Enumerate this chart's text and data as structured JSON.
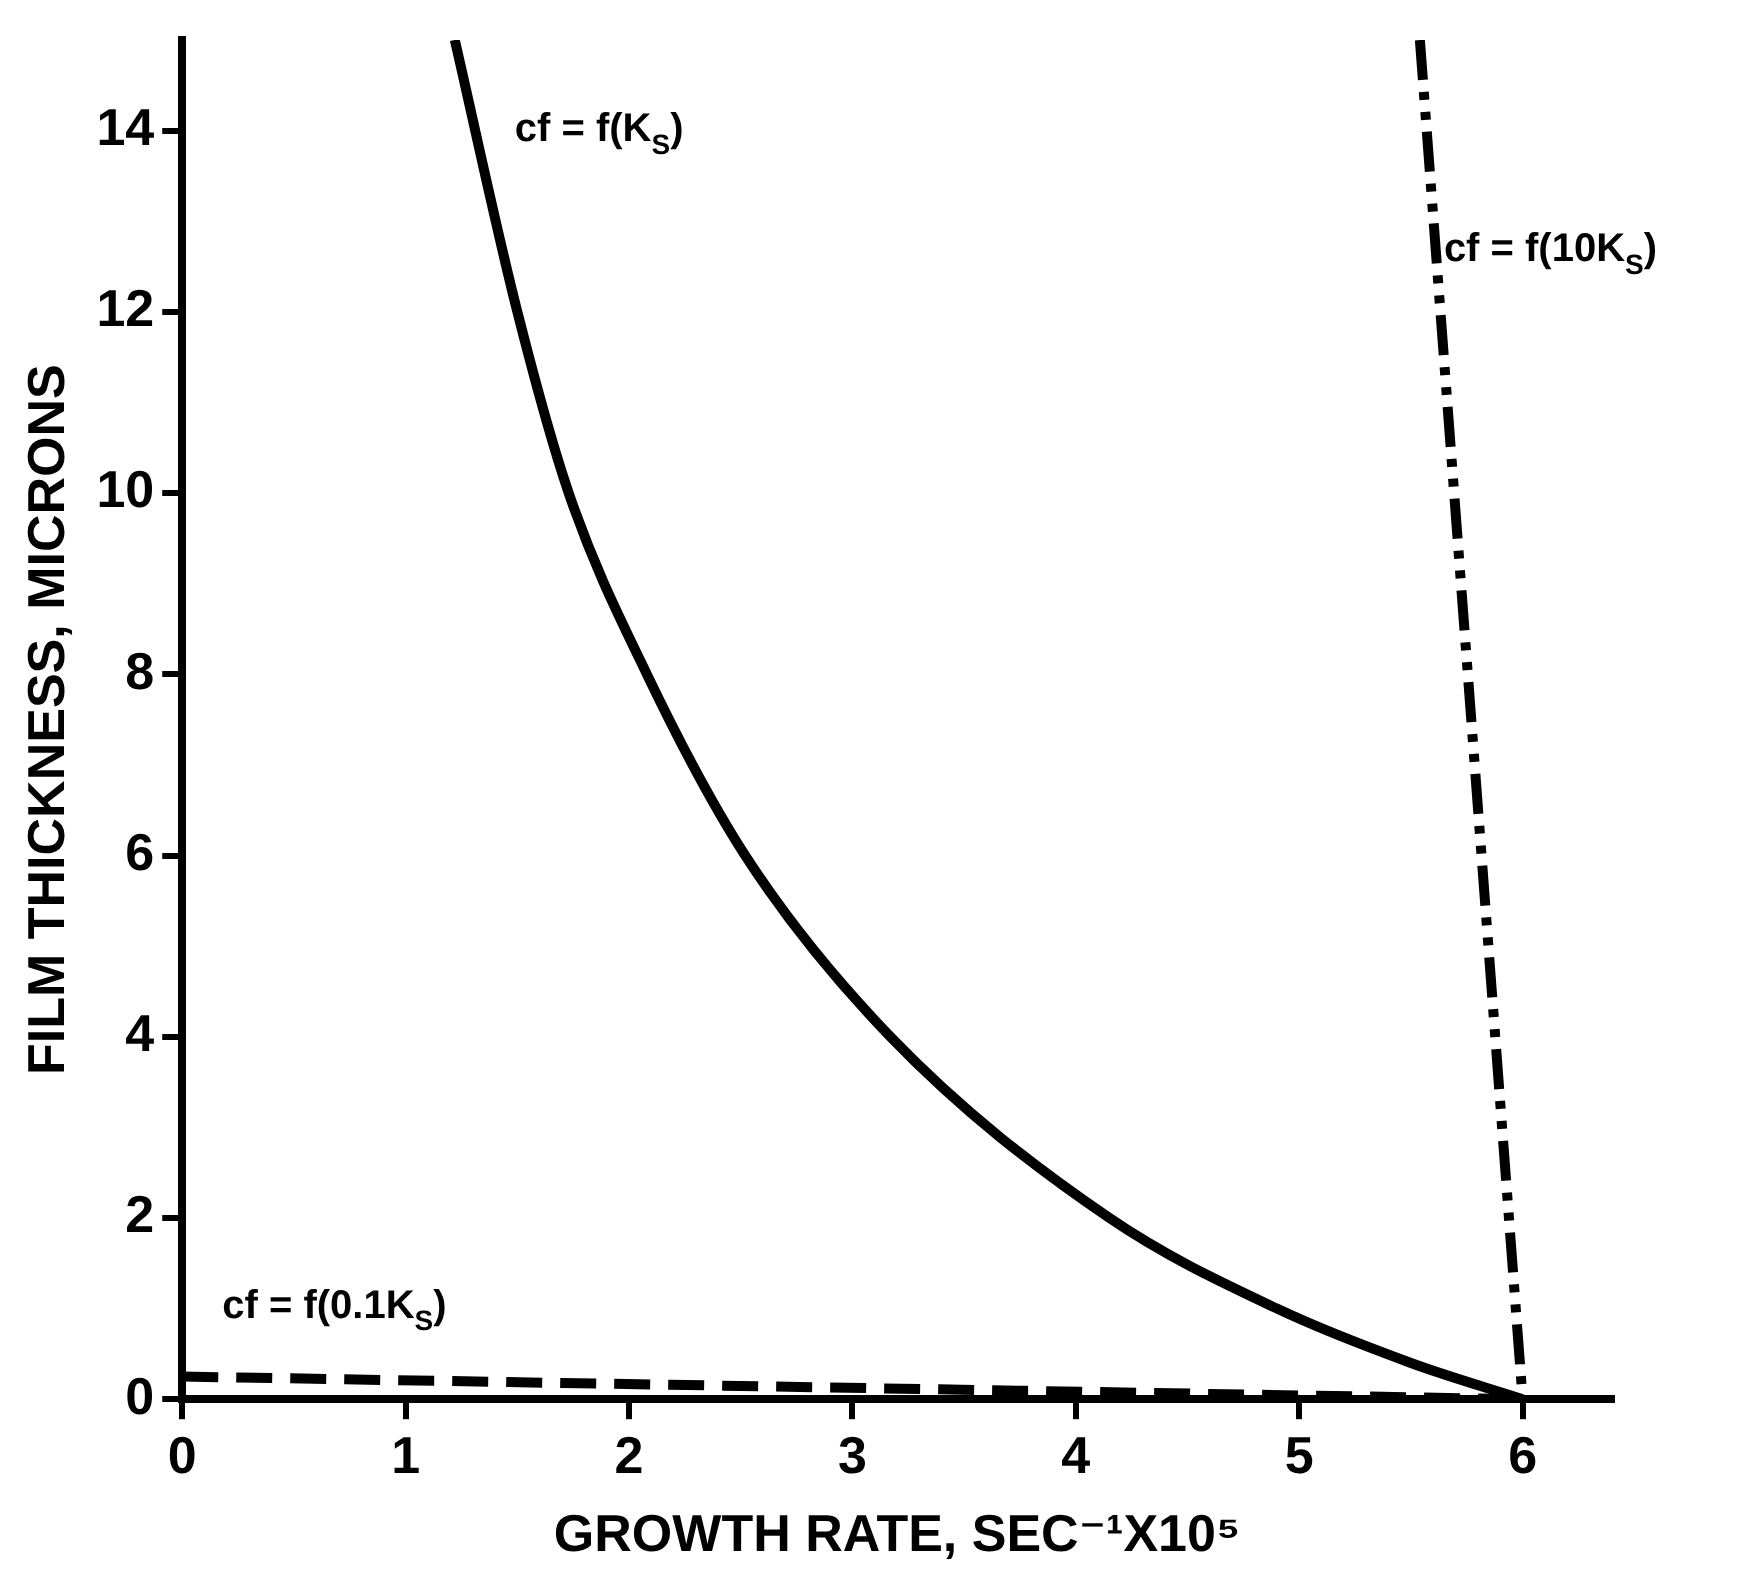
{
  "chart_data": {
    "type": "line",
    "xlabel": "GROWTH RATE, SEC⁻¹X10⁵",
    "ylabel": "FILM THICKNESS, MICRONS",
    "xlim": [
      0,
      6.4
    ],
    "xticks": [
      0,
      1,
      2,
      3,
      4,
      5,
      6
    ],
    "ylim": [
      0,
      15
    ],
    "yticks": [
      0,
      2,
      4,
      6,
      8,
      10,
      12,
      14
    ],
    "grid": false,
    "legend": false,
    "marker": "none",
    "series": [
      {
        "name": "cf = f(K$_{S}$)",
        "color": "#000000",
        "line_style": "solid",
        "x": [
          1.22,
          1.5,
          1.73,
          2.08,
          2.52,
          3.17,
          4.15,
          4.9,
          5.5,
          6.0
        ],
        "values": [
          15,
          12,
          10,
          8,
          6,
          4,
          2,
          1,
          0.4,
          0
        ]
      },
      {
        "name": "cf = f(0.1K$_{S}$)",
        "color": "#000000",
        "line_style": "dashed",
        "x": [
          0,
          6.0
        ],
        "values": [
          0.25,
          0
        ]
      },
      {
        "name": "cf = f(10K$_{S}$)",
        "color": "#000000",
        "line_style": "dashdot",
        "x": [
          5.54,
          6.0
        ],
        "values": [
          15,
          0
        ]
      }
    ]
  }
}
